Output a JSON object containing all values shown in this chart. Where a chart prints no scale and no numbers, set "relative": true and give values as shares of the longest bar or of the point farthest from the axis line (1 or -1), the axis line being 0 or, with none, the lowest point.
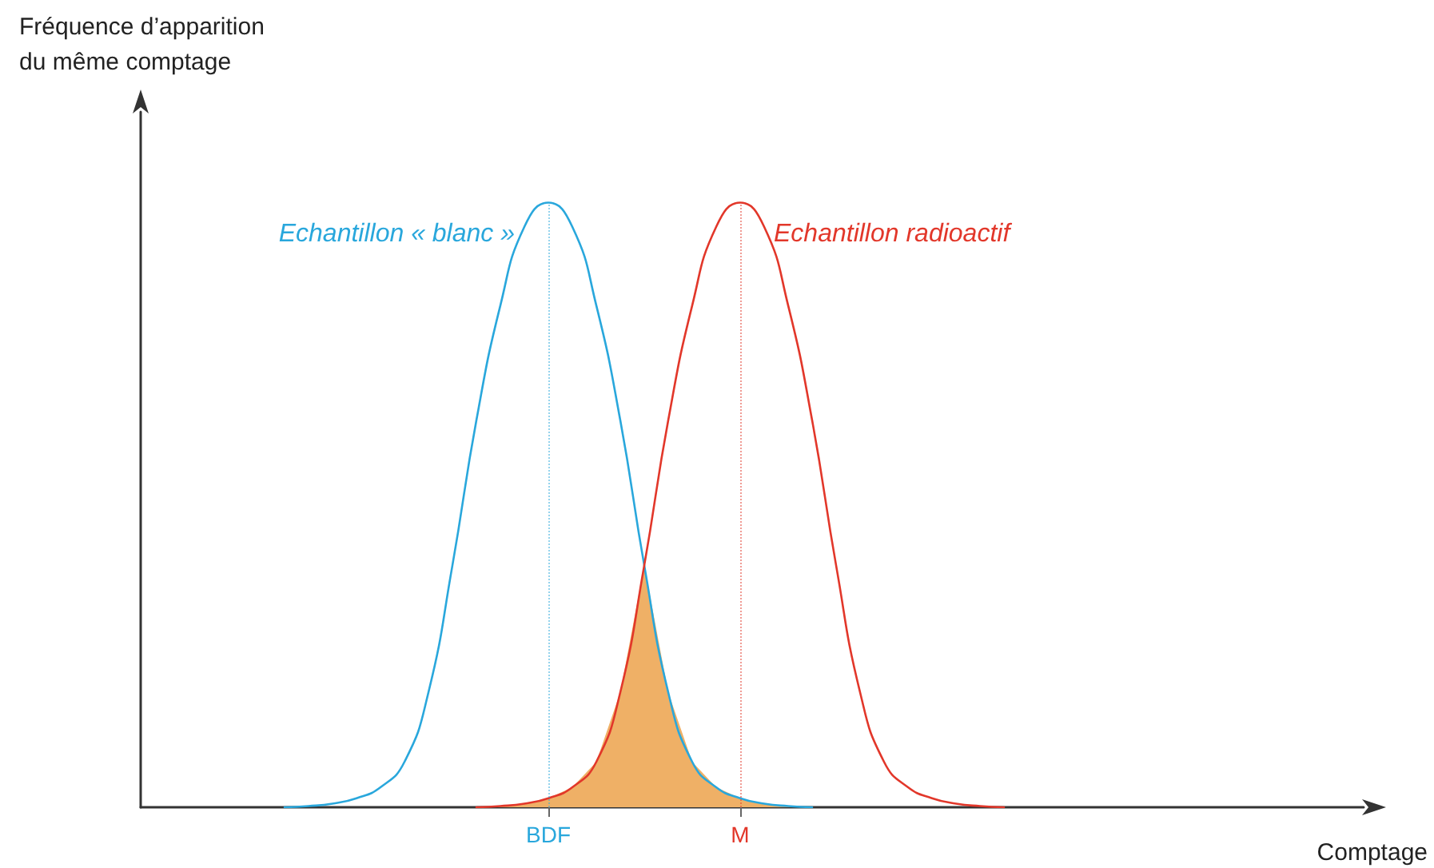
{
  "chart_data": {
    "type": "line",
    "relative": true,
    "xlabel": "Comptage",
    "annotations": [
      "Fréquence d’apparition\ndu même comptage"
    ],
    "marker": "none",
    "line_style": "solid",
    "categories": [
      null,
      null,
      null,
      null,
      null,
      null,
      null,
      null,
      null,
      null,
      null,
      null,
      null,
      null,
      null,
      null,
      null,
      "BDF",
      null,
      null,
      null,
      null,
      null,
      null,
      null,
      "M",
      null,
      null,
      null,
      null,
      null,
      null,
      null,
      null,
      null,
      null,
      null,
      null,
      null,
      null,
      null,
      null,
      null,
      null,
      null,
      null,
      null,
      null,
      null,
      null,
      null,
      null
    ],
    "series": [
      {
        "name": "Echantillon « blanc »",
        "color": "#29a7dc",
        "values": [
          null,
          null,
          null,
          null,
          null,
          null,
          0,
          0.002,
          0.006,
          0.015,
          0.033,
          0.075,
          0.19,
          0.4,
          0.64,
          0.83,
          0.96,
          1,
          0.96,
          0.83,
          0.64,
          0.4,
          0.19,
          0.075,
          0.033,
          0.015,
          0.006,
          0.002,
          0,
          null,
          null,
          null,
          null,
          null,
          null,
          null,
          null,
          null,
          null,
          null,
          null,
          null,
          null,
          null,
          null,
          null,
          null,
          null,
          null,
          null,
          null,
          null
        ]
      },
      {
        "name": "Echantillon radioactif",
        "color": "#e2372a",
        "values": [
          null,
          null,
          null,
          null,
          null,
          null,
          null,
          null,
          null,
          null,
          null,
          null,
          null,
          null,
          0,
          0.002,
          0.006,
          0.015,
          0.033,
          0.075,
          0.19,
          0.4,
          0.64,
          0.83,
          0.96,
          1,
          0.96,
          0.83,
          0.64,
          0.4,
          0.19,
          0.075,
          0.033,
          0.015,
          0.006,
          0.002,
          0,
          null,
          null,
          null,
          null,
          null,
          null,
          null,
          null,
          null,
          null,
          null,
          null,
          null,
          null,
          null
        ]
      },
      {
        "type": "area",
        "color": "#efb066",
        "values": [
          null,
          null,
          null,
          null,
          null,
          null,
          null,
          null,
          null,
          null,
          null,
          null,
          null,
          null,
          0,
          0.002,
          0.006,
          0.015,
          0.033,
          0.075,
          0.19,
          0.4,
          0.19,
          0.075,
          0.033,
          0.015,
          0.006,
          0.002,
          0,
          null,
          null,
          null,
          null,
          null,
          null,
          null,
          null,
          null,
          null,
          null,
          null,
          null,
          null,
          null,
          null,
          null,
          null,
          null,
          null,
          null,
          null,
          null
        ]
      }
    ],
    "ref_lines": [
      {
        "axis": "x",
        "value": "BDF",
        "color": "#29a7dc",
        "line_style": "dotted"
      },
      {
        "axis": "x",
        "value": "M",
        "color": "#e2372a",
        "line_style": "dotted"
      }
    ]
  }
}
